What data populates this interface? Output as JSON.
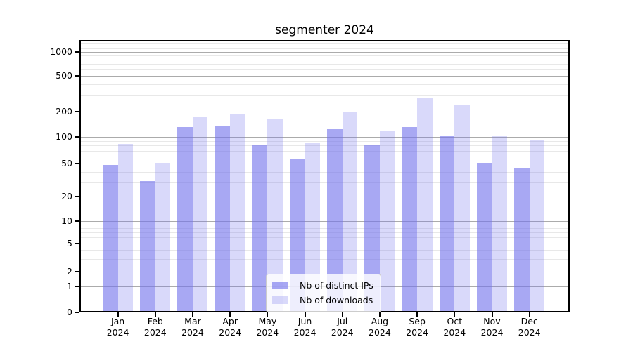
{
  "figure": {
    "title": "segmenter 2024"
  },
  "chart_data": {
    "type": "bar",
    "title": "segmenter 2024",
    "x_axis": {
      "categories": [
        "Jan",
        "Feb",
        "Mar",
        "Apr",
        "May",
        "Jun",
        "Jul",
        "Aug",
        "Sep",
        "Oct",
        "Nov",
        "Dec"
      ],
      "year_line": "2024"
    },
    "y_axis": {
      "scale": "symlog",
      "ticks": [
        0,
        1,
        2,
        5,
        10,
        20,
        50,
        100,
        200,
        500,
        1000
      ],
      "range": [
        0,
        1400
      ],
      "minor_gridlines": [
        3,
        4,
        6,
        7,
        8,
        9,
        30,
        40,
        60,
        70,
        80,
        90,
        300,
        400,
        600,
        700,
        800,
        900,
        1100,
        1200,
        1300
      ]
    },
    "grid": true,
    "legend": {
      "position": "lower-center",
      "entries": [
        "Nb of distinct IPs",
        "Nb of downloads"
      ]
    },
    "series": [
      {
        "name": "Nb of distinct IPs",
        "color": "rgba(115,115,235,0.62)",
        "values": [
          48,
          31,
          132,
          135,
          80,
          57,
          124,
          80,
          132,
          101,
          51,
          45
        ]
      },
      {
        "name": "Nb of downloads",
        "color": "rgba(115,115,235,0.27)",
        "values": [
          84,
          51,
          176,
          190,
          165,
          85,
          196,
          116,
          285,
          235,
          101,
          91
        ]
      }
    ],
    "colors": {
      "bar_base": "#7373eb",
      "major_grid": "#ababab",
      "minor_grid": "#e8e8e8",
      "spine": "#000000",
      "background": "#ffffff"
    }
  }
}
